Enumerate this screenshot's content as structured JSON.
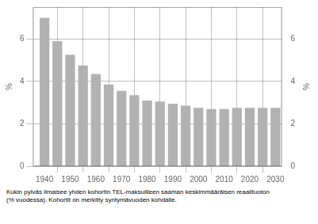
{
  "chart_data": {
    "type": "bar",
    "x": [
      1940,
      1945,
      1950,
      1955,
      1960,
      1965,
      1970,
      1975,
      1980,
      1985,
      1990,
      1995,
      2000,
      2005,
      2010,
      2015,
      2020,
      2025,
      2030
    ],
    "values": [
      7.0,
      5.9,
      5.25,
      4.75,
      4.35,
      3.85,
      3.55,
      3.35,
      3.1,
      3.05,
      2.95,
      2.85,
      2.75,
      2.7,
      2.7,
      2.75,
      2.75,
      2.75,
      2.75
    ],
    "color": "#b2b2b2",
    "xlim": [
      1935.5,
      2032.5
    ],
    "xticks": [
      1940,
      1950,
      1960,
      1970,
      1980,
      1990,
      2000,
      2010,
      2020,
      2030
    ],
    "ylim": [
      0,
      7.5
    ],
    "yticks": [
      0,
      2,
      4,
      6
    ],
    "y2lim": [
      0,
      7.5
    ],
    "y2ticks": [
      0,
      2,
      4,
      6
    ],
    "ylabel": "%",
    "y2label": "%",
    "caption": "Kukin pylväs ilmaisee yhden kohortin TEL-maksuilleen saaman keskimmääräisen reaalituoton\n(% vuodessa). Kohortit on merkitty syntymävuoden kohdalle.",
    "grid": true
  }
}
